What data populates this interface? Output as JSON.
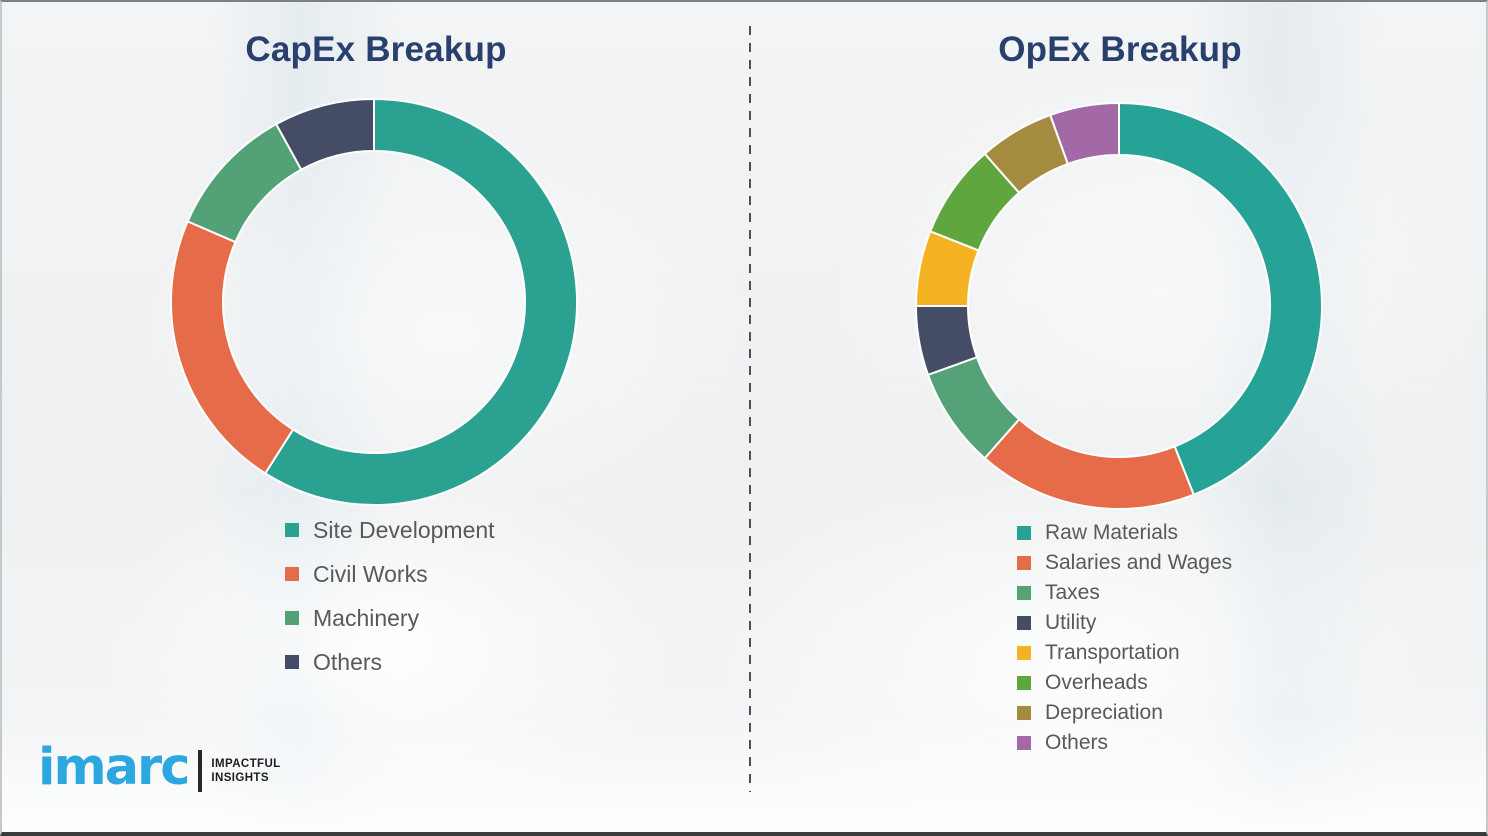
{
  "theme": {
    "title_color": "#29406f",
    "legend_text_color": "#595959",
    "background_color": "#eff0f2",
    "divider_color": "#4d4f52",
    "logo_blue": "#2ca7e0"
  },
  "logo": {
    "brand": "imarc",
    "tagline_line1": "IMPACTFUL",
    "tagline_line2": "INSIGHTS"
  },
  "chart_data": [
    {
      "type": "pie",
      "subtype": "donut",
      "title": "CapEx Breakup",
      "legend_position": "below-left",
      "units": "percent (estimated from arc angles; no labels shown)",
      "segments": [
        {
          "label": "Site Development",
          "value": 59,
          "color": "#2ba192"
        },
        {
          "label": "Civil Works",
          "value": 22.5,
          "color": "#e66b48"
        },
        {
          "label": "Machinery",
          "value": 10.5,
          "color": "#52a177"
        },
        {
          "label": "Others",
          "value": 8,
          "color": "#444c66"
        }
      ]
    },
    {
      "type": "pie",
      "subtype": "donut",
      "title": "OpEx Breakup",
      "legend_position": "below-left",
      "units": "percent (estimated from arc angles; no labels shown)",
      "segments": [
        {
          "label": "Raw Materials",
          "value": 44,
          "color": "#27a296"
        },
        {
          "label": "Salaries and Wages",
          "value": 17.5,
          "color": "#e66b48"
        },
        {
          "label": "Taxes",
          "value": 8,
          "color": "#55a279"
        },
        {
          "label": "Utility",
          "value": 5.5,
          "color": "#444c66"
        },
        {
          "label": "Transportation",
          "value": 6,
          "color": "#f5b223"
        },
        {
          "label": "Overheads",
          "value": 7.5,
          "color": "#60a63f"
        },
        {
          "label": "Depreciation",
          "value": 6,
          "color": "#a58b3f"
        },
        {
          "label": "Others",
          "value": 5.5,
          "color": "#a369a6"
        }
      ]
    }
  ]
}
